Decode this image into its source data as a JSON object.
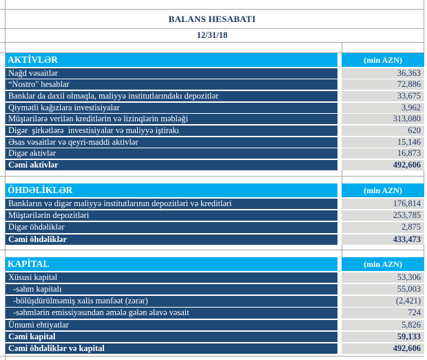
{
  "header": {
    "title": "BALANS HESABATI",
    "date": "12/31/18"
  },
  "unit_label": "(min AZN)",
  "sections": [
    {
      "name": "AKTİVLƏR",
      "rows": [
        {
          "label": "Nağd vəsaitlər",
          "value": "36,363"
        },
        {
          "label": "“Nostro\" hesablar",
          "value": "72,886"
        },
        {
          "label": "Banklar da daxil olmaqla, maliyyə institutlarındakı depozitlər",
          "value": "33,675"
        },
        {
          "label": "Qiymətli kağızlara investisiyalar",
          "value": "3,962"
        },
        {
          "label": "Müştərilərə verilən kreditlərin və lizinqlərin məbləği",
          "value": "313,080"
        },
        {
          "label": "Digər  şirkətlərə  investisiyalar və maliyyə iştirakı",
          "value": "620"
        },
        {
          "label": "Əsas vəsaitlər və qeyri-maddi aktivlər",
          "value": "15,146"
        },
        {
          "label": "Digər aktivlər",
          "value": "16,873"
        },
        {
          "label": "Cəmi aktivlər",
          "value": "492,606",
          "bold": true
        }
      ]
    },
    {
      "name": "ÖHDƏLİKLƏR",
      "rows": [
        {
          "label": "Bankların və digər maliyyə institutlarının depozitləri və kreditləri",
          "value": "176,814"
        },
        {
          "label": "Müştərilərin depozitləri",
          "value": "253,785"
        },
        {
          "label": "Digər öhdəliklər",
          "value": "2,875"
        },
        {
          "label": "Cəmi öhdəliklər",
          "value": "433,473",
          "bold": true
        }
      ]
    },
    {
      "name": "KAPİTAL",
      "rows": [
        {
          "label": "Xüsusi kapital",
          "value": "53,306"
        },
        {
          "label": "-səhm kapitalı",
          "value": "55,003",
          "indent": true
        },
        {
          "label": "-bölüşdürülməmiş xalis mənfəət (zərər)",
          "value": "(2,421)",
          "indent": true
        },
        {
          "label": "-səhmlərin emissiyasından əmələ gələn əlavə vəsait",
          "value": "724",
          "indent": true
        },
        {
          "label": "Ümumi ehtiyatlar",
          "value": "5,826"
        },
        {
          "label": "Cəmi kapital",
          "value": "59,133",
          "bold": true
        },
        {
          "label": "Cəmi öhdəliklər və kapital",
          "value": "492,606",
          "bold": true
        }
      ]
    }
  ],
  "colors": {
    "section_header_bg": "#00ACEC",
    "row_label_bg": "#1F4A78",
    "value_bg": "#DBDBD9",
    "value_text": "#1F3864",
    "title_text": "#17375D",
    "gridline": "#A6A6A6"
  }
}
